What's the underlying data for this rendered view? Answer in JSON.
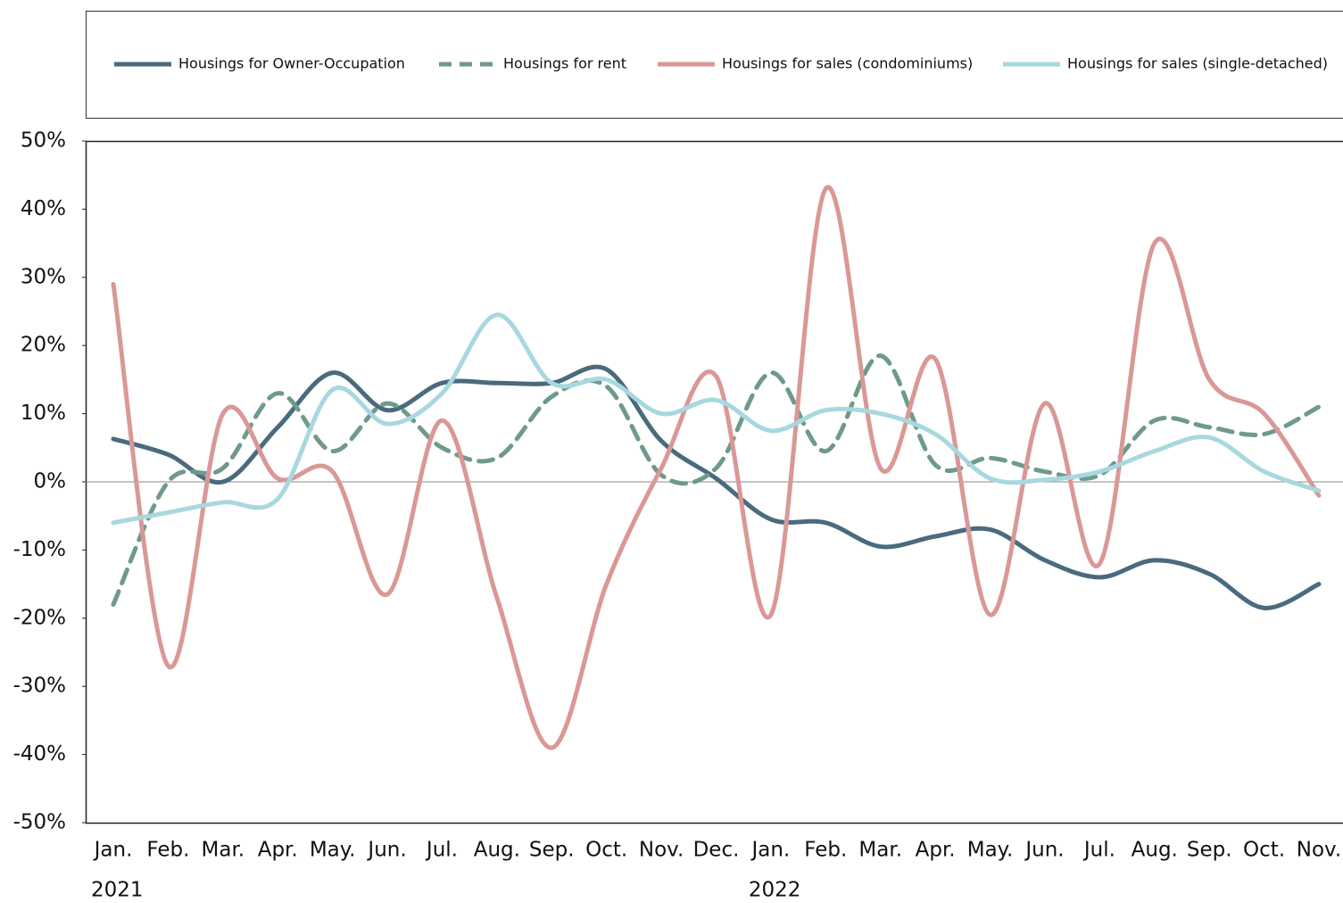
{
  "chart_data": {
    "type": "line",
    "categories": [
      "Jan.",
      "Feb.",
      "Mar.",
      "Apr.",
      "May.",
      "Jun.",
      "Jul.",
      "Aug.",
      "Sep.",
      "Oct.",
      "Nov.",
      "Dec.",
      "Jan.",
      "Feb.",
      "Mar.",
      "Apr.",
      "May.",
      "Jun.",
      "Jul.",
      "Aug.",
      "Sep.",
      "Oct.",
      "Nov."
    ],
    "x_groups": [
      {
        "label": "2021",
        "start": 0
      },
      {
        "label": "2022",
        "start": 12
      }
    ],
    "series": [
      {
        "name": "Housings for Owner-Occupation",
        "color": "#4a6a7e",
        "dash": false,
        "values": [
          6.3,
          4,
          0,
          8,
          16,
          10.5,
          14.5,
          14.5,
          14.5,
          16.5,
          6,
          0.5,
          -5.5,
          -6,
          -9.5,
          -8,
          -7,
          -11.5,
          -14,
          -11.5,
          -13.5,
          -18.5,
          -15
        ]
      },
      {
        "name": "Housings for rent",
        "color": "#6e9a8a",
        "dash": true,
        "values": [
          -18,
          0,
          2,
          13,
          4.5,
          11.5,
          5,
          3.5,
          12.5,
          14,
          1,
          2,
          16,
          4.5,
          18.5,
          2.5,
          3.5,
          1.5,
          1,
          9,
          8,
          7,
          11
        ]
      },
      {
        "name": "Housings for sales (condominiums)",
        "color": "#d99896",
        "dash": false,
        "values": [
          29,
          -27,
          10,
          0.5,
          1.5,
          -16.5,
          9,
          -17,
          -39,
          -15,
          2,
          15.5,
          -19.5,
          43,
          2,
          18,
          -19.5,
          11.5,
          -12,
          35,
          15,
          10,
          -2
        ]
      },
      {
        "name": "Housings for sales (single-detached)",
        "color": "#a8d8df",
        "dash": false,
        "values": [
          -6,
          -4.5,
          -3,
          -2.5,
          13.5,
          8.5,
          13,
          24.5,
          14.5,
          15,
          10,
          12,
          7.5,
          10.5,
          10,
          7,
          0.5,
          0.3,
          1.5,
          4.5,
          6.5,
          1.5,
          -1.3
        ]
      }
    ],
    "ylim": [
      -50,
      50
    ],
    "yticks": [
      {
        "value": 50,
        "label": "50%"
      },
      {
        "value": 40,
        "label": "40%"
      },
      {
        "value": 30,
        "label": "30%"
      },
      {
        "value": 20,
        "label": "20%"
      },
      {
        "value": 10,
        "label": "10%"
      },
      {
        "value": 0,
        "label": "0%"
      },
      {
        "value": -10,
        "label": "-10%"
      },
      {
        "value": -20,
        "label": "-20%"
      },
      {
        "value": -30,
        "label": "-30%"
      },
      {
        "value": -40,
        "label": "-40%"
      },
      {
        "value": -50,
        "label": "-50%"
      }
    ],
    "legend": "top"
  }
}
